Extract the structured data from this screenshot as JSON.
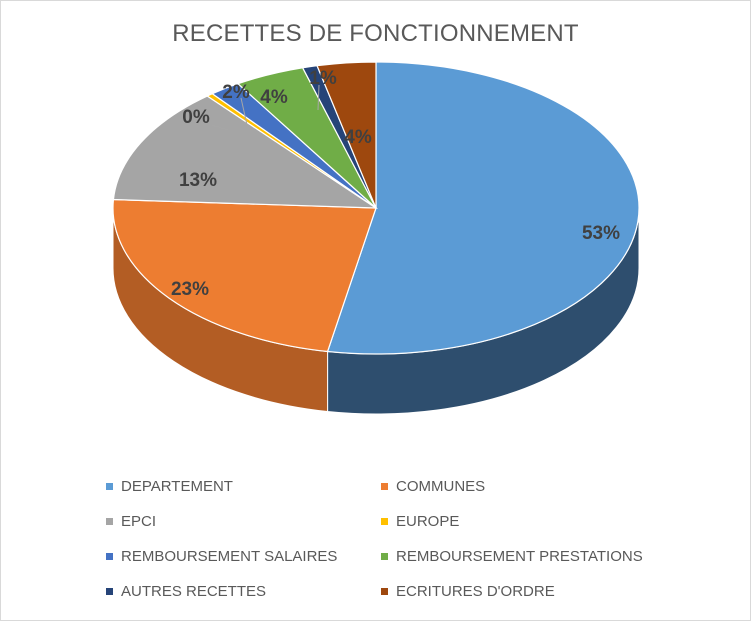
{
  "chart_data": {
    "type": "pie",
    "title": "RECETTES DE FONCTIONNEMENT",
    "legend_position": "bottom",
    "slices": [
      {
        "label": "DEPARTEMENT",
        "value": 53,
        "display": "53%",
        "color": "#5b9bd5",
        "side_color": "#2e4e6e",
        "text_color": "#404040"
      },
      {
        "label": "COMMUNES",
        "value": 23,
        "display": "23%",
        "color": "#ed7d31",
        "side_color": "#b35d24",
        "text_color": "#404040"
      },
      {
        "label": "EPCI",
        "value": 13,
        "display": "13%",
        "color": "#a5a5a5",
        "side_color": "#7a7a7a",
        "text_color": "#404040"
      },
      {
        "label": "EUROPE",
        "value": 0.4,
        "display": "0%",
        "color": "#ffc000",
        "side_color": "#bf9000",
        "text_color": "#404040"
      },
      {
        "label": "REMBOURSEMENT SALAIRES",
        "value": 1.9,
        "display": "2%",
        "color": "#4472c4",
        "side_color": "#2f5597",
        "text_color": "#404040"
      },
      {
        "label": "REMBOURSEMENT PRESTATIONS",
        "value": 4.3,
        "display": "4%",
        "color": "#70ad47",
        "side_color": "#507e33",
        "text_color": "#404040"
      },
      {
        "label": "AUTRES RECETTES",
        "value": 0.9,
        "display": "1%",
        "color": "#264478",
        "side_color": "#182b4d",
        "text_color": "#404040"
      },
      {
        "label": "ECRITURES D'ORDRE",
        "value": 3.6,
        "display": "4%",
        "color": "#9e480e",
        "side_color": "#6b300a",
        "text_color": "#404040"
      }
    ]
  }
}
